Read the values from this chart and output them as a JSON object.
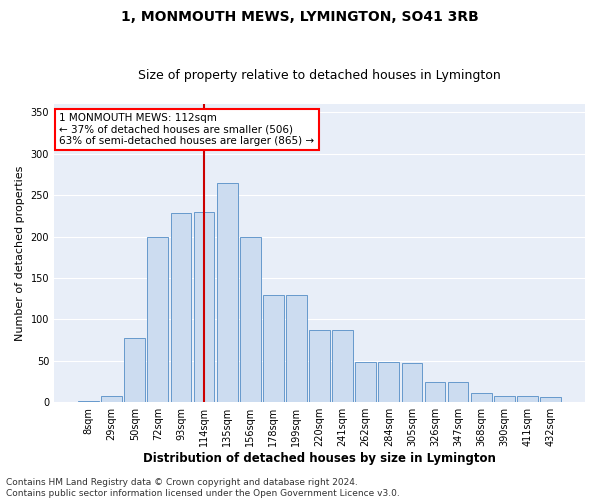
{
  "title": "1, MONMOUTH MEWS, LYMINGTON, SO41 3RB",
  "subtitle": "Size of property relative to detached houses in Lymington",
  "xlabel": "Distribution of detached houses by size in Lymington",
  "ylabel": "Number of detached properties",
  "footer_line1": "Contains HM Land Registry data © Crown copyright and database right 2024.",
  "footer_line2": "Contains public sector information licensed under the Open Government Licence v3.0.",
  "annotation_line1": "1 MONMOUTH MEWS: 112sqm",
  "annotation_line2": "← 37% of detached houses are smaller (506)",
  "annotation_line3": "63% of semi-detached houses are larger (865) →",
  "bar_labels": [
    "8sqm",
    "29sqm",
    "50sqm",
    "72sqm",
    "93sqm",
    "114sqm",
    "135sqm",
    "156sqm",
    "178sqm",
    "199sqm",
    "220sqm",
    "241sqm",
    "262sqm",
    "284sqm",
    "305sqm",
    "326sqm",
    "347sqm",
    "368sqm",
    "390sqm",
    "411sqm",
    "432sqm"
  ],
  "bar_values": [
    2,
    7,
    77,
    200,
    228,
    230,
    265,
    200,
    130,
    130,
    87,
    87,
    49,
    48,
    47,
    24,
    24,
    11,
    8,
    7,
    6
  ],
  "vline_index": 5,
  "bar_color": "#ccdcf0",
  "bar_edge_color": "#6699cc",
  "vline_color": "#cc0000",
  "fig_bg_color": "#ffffff",
  "ax_bg_color": "#e8eef8",
  "grid_color": "#ffffff",
  "title_fontsize": 10,
  "subtitle_fontsize": 9,
  "ylabel_fontsize": 8,
  "xlabel_fontsize": 8.5,
  "tick_fontsize": 7,
  "ann_fontsize": 7.5,
  "footer_fontsize": 6.5,
  "ylim": [
    0,
    360
  ],
  "yticks": [
    0,
    50,
    100,
    150,
    200,
    250,
    300,
    350
  ]
}
